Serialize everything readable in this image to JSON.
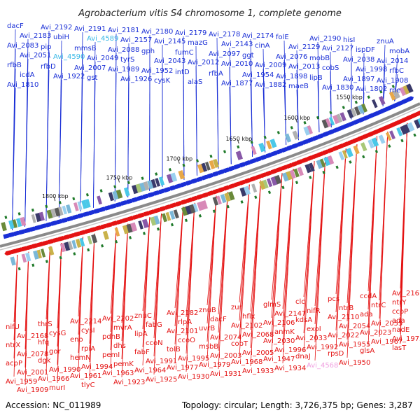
{
  "title": "Agrobacterium vitis S4 chromosome 1, complete genome",
  "footer": {
    "accession_label": "Accession:",
    "accession": "NC_011989",
    "topology_label": "Topology:",
    "topology": "circular",
    "length_label": "Length:",
    "length": "3,726,375 bp",
    "genes_label": "Genes:",
    "genes": "3,287"
  },
  "colors": {
    "forward_strand": "#1a2fd6",
    "reverse_strand": "#e41313",
    "highlight_forward": "#38b8e6",
    "highlight_reverse": "#f0a0e0",
    "backbone": "#8a8a8a"
  },
  "scale_ticks": [
    "1550 kbp",
    "1600 kbp",
    "1650 kbp",
    "1700 kbp",
    "1750 kbp",
    "1800 kbp"
  ],
  "forward_genes": [
    "dacF",
    "Avi_2192",
    "Avi_2191",
    "Avi_2181",
    "Avi_2180",
    "Avi_2179",
    "Avi_2178",
    "Avi_2174",
    "folE",
    "Avi_2190",
    "hisI",
    "znuA",
    "Avi_2183",
    "ubiH",
    "Avi_4589",
    "Avi_2157",
    "Avi_2145",
    "mazG",
    "Avi_2143",
    "cinA",
    "Avi_2129",
    "Avi_2127",
    "ispDF",
    "mobA",
    "Avi_2083",
    "pip",
    "mmsB",
    "Avi_2088",
    "gph",
    "fumC",
    "Avi_2097",
    "ggt",
    "Avi_2076",
    "mobB",
    "Avi_2038",
    "Avi_2014",
    "Avi_2051",
    "Avi_4590",
    "Avi_2049",
    "tyrS",
    "Avi_2043",
    "Avi_2012",
    "Avi_2010",
    "Avi_2009",
    "Avi_2013",
    "cobS",
    "Avi_1998",
    "rfbC",
    "rfbB",
    "rfbD",
    "Avi_2007",
    "Avi_1989",
    "Avi_1952",
    "intD",
    "rfbA",
    "Avi_1954",
    "Avi_1898",
    "lipB",
    "Avi_1897",
    "Avi_1908",
    "icdA",
    "Avi_1922",
    "gst",
    "Avi_1926",
    "cysK",
    "alaS",
    "Avi_1877",
    "Avi_1882",
    "maeB",
    "Avi_1830",
    "Avi_1802",
    "rne",
    "Avi_1810"
  ],
  "reverse_genes": [
    "nifU",
    "thrS",
    "Avi_2214",
    "Avi_2202",
    "znuC",
    "Avi_2182",
    "znuB",
    "zur",
    "glmS",
    "clc",
    "pcs",
    "ccdA",
    "Avi_2167",
    "Avi_2168",
    "cysG",
    "cysI",
    "mvrA",
    "fabG",
    "rlpA",
    "dacF",
    "hflx",
    "Avi_2147",
    "nifR",
    "ntrB",
    "ntrC",
    "ntrY",
    "ntrX",
    "hfq",
    "eno",
    "pdhB",
    "lipA",
    "Avi_2101",
    "uvrB",
    "Avi_2102",
    "Avi_2106",
    "kdsA",
    "Avi_2110",
    "ada",
    "ccoP",
    "Avi_2078",
    "gor",
    "rpiA",
    "dhs",
    "ccoN",
    "ccoO",
    "Avi_2074",
    "Avi_2068",
    "anmK",
    "exoI",
    "Avi_2054",
    "Avi_2055",
    "ada",
    "acpP",
    "dgk",
    "hemN",
    "pemI",
    "fabF",
    "tolB",
    "msbB",
    "cobT",
    "Avi_2030",
    "Avi_2033",
    "Avi_2022",
    "Avi_2023",
    "nadE",
    "Avi_2001",
    "Avi_1990",
    "Avi_1994",
    "pemK",
    "Avi_1991",
    "Avi_1995",
    "Avi_2003",
    "Avi_2005",
    "Avi_1996",
    "Avi_1992",
    "Avi_1955",
    "Avi_1967",
    "Avi_1973",
    "Avi_1959",
    "Avi_1966",
    "Avi_1961",
    "Avi_1963",
    "Avi_1964",
    "Avi_1977",
    "Avi_1979",
    "Avi_1968",
    "Avi_1947",
    "dnaJ",
    "rpsD",
    "glsA",
    "lasT",
    "Avi_1909",
    "murI",
    "tlyC",
    "Avi_1923",
    "Avi_1925",
    "Avi_1930",
    "Avi_1931",
    "Avi_1933",
    "Avi_1934",
    "Avi_4568",
    "Avi_1950"
  ]
}
